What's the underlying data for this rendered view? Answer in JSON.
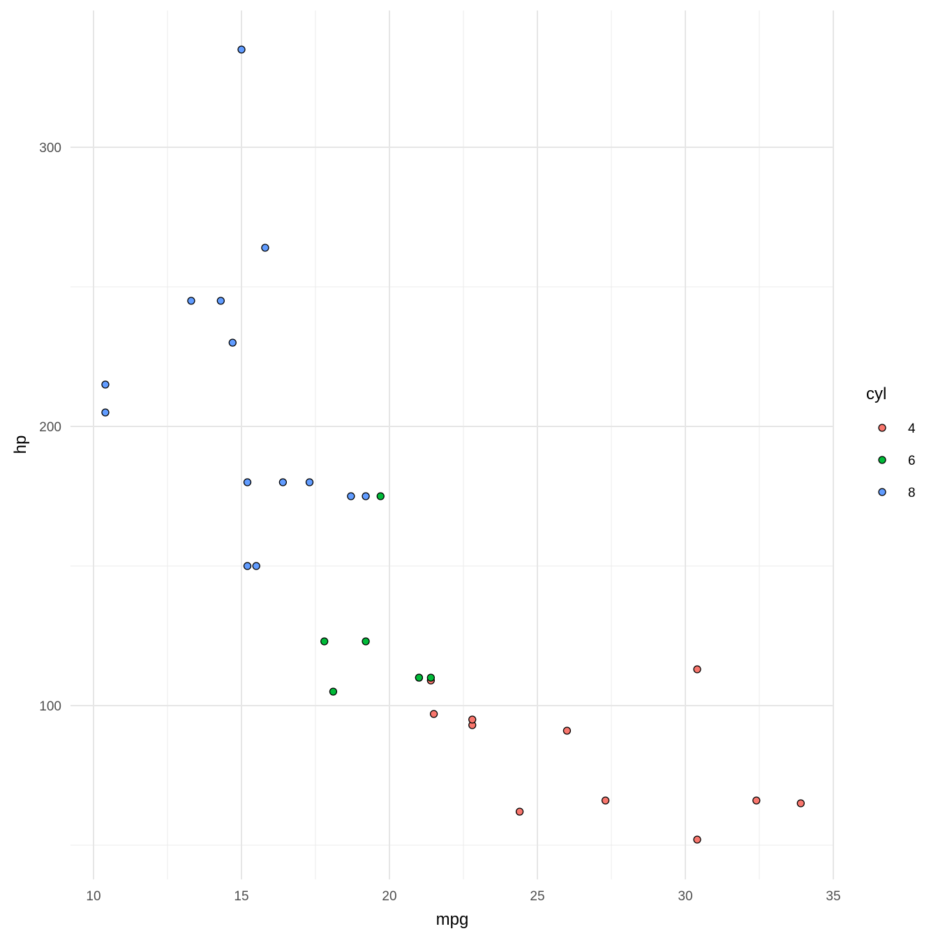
{
  "chart_data": {
    "type": "scatter",
    "title": "",
    "xlabel": "mpg",
    "ylabel": "hp",
    "xlim": [
      8.9,
      35.05
    ],
    "ylim": [
      37.8,
      349.5
    ],
    "xticks": [
      10,
      15,
      20,
      25,
      30,
      35
    ],
    "yticks": [
      100,
      200,
      300
    ],
    "grid": true,
    "legend": {
      "title": "cyl",
      "position": "right",
      "entries": [
        {
          "label": "4",
          "color": "#F8766D"
        },
        {
          "label": "6",
          "color": "#00BA38"
        },
        {
          "label": "8",
          "color": "#619CFF"
        }
      ]
    },
    "series": [
      {
        "name": "4",
        "color": "#F8766D",
        "points": [
          [
            22.8,
            93
          ],
          [
            24.4,
            62
          ],
          [
            22.8,
            95
          ],
          [
            32.4,
            66
          ],
          [
            30.4,
            52
          ],
          [
            33.9,
            65
          ],
          [
            21.5,
            97
          ],
          [
            27.3,
            66
          ],
          [
            26.0,
            91
          ],
          [
            30.4,
            113
          ],
          [
            21.4,
            109
          ]
        ]
      },
      {
        "name": "6",
        "color": "#00BA38",
        "points": [
          [
            21.0,
            110
          ],
          [
            21.0,
            110
          ],
          [
            21.4,
            110
          ],
          [
            18.1,
            105
          ],
          [
            19.2,
            123
          ],
          [
            17.8,
            123
          ],
          [
            19.7,
            175
          ]
        ]
      },
      {
        "name": "8",
        "color": "#619CFF",
        "points": [
          [
            18.7,
            175
          ],
          [
            14.3,
            245
          ],
          [
            16.4,
            180
          ],
          [
            17.3,
            180
          ],
          [
            15.2,
            180
          ],
          [
            10.4,
            205
          ],
          [
            10.4,
            215
          ],
          [
            14.7,
            230
          ],
          [
            15.5,
            150
          ],
          [
            15.2,
            150
          ],
          [
            13.3,
            245
          ],
          [
            19.2,
            175
          ],
          [
            15.8,
            264
          ],
          [
            15.0,
            335
          ]
        ]
      }
    ]
  }
}
